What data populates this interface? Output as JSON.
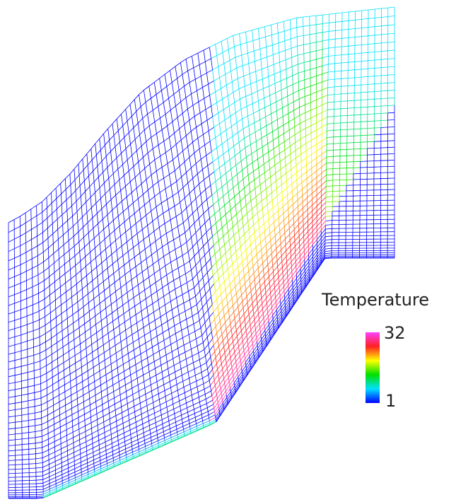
{
  "legend": {
    "title": "Temperature",
    "max": 32,
    "min": 1
  }
}
